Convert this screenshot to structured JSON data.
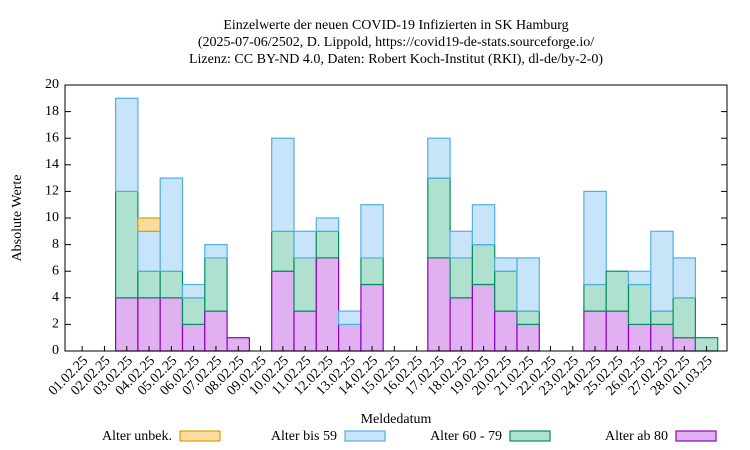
{
  "chart_data": {
    "type": "bar",
    "stacked": true,
    "title": [
      "Einzelwerte der neuen COVID-19 Infizierten in SK Hamburg",
      "(2025-07-06/2502, D. Lippold, https://covid19-de-stats.sourceforge.io/",
      "Lizenz: CC BY-ND 4.0, Daten: Robert Koch-Institut (RKI), dl-de/by-2-0)"
    ],
    "x_label": "Meldedatum",
    "y_label": "Absolute Werte",
    "categories": [
      "01.02.25",
      "02.02.25",
      "03.02.25",
      "04.02.25",
      "05.02.25",
      "06.02.25",
      "07.02.25",
      "08.02.25",
      "09.02.25",
      "10.02.25",
      "11.02.25",
      "12.02.25",
      "13.02.25",
      "14.02.25",
      "15.02.25",
      "16.02.25",
      "17.02.25",
      "18.02.25",
      "19.02.25",
      "20.02.25",
      "21.02.25",
      "22.02.25",
      "23.02.25",
      "24.02.25",
      "25.02.25",
      "26.02.25",
      "27.02.25",
      "28.02.25",
      "01.03.25"
    ],
    "series": [
      {
        "name": "Alter unbek.",
        "color": "#f8dca0",
        "edge": "#e0a000",
        "values": [
          0,
          0,
          0,
          1,
          0,
          0,
          0,
          0,
          0,
          0,
          0,
          0,
          0,
          0,
          0,
          0,
          0,
          0,
          0,
          0,
          0,
          0,
          0,
          0,
          0,
          0,
          0,
          0,
          0
        ]
      },
      {
        "name": "Alter bis 59",
        "color": "#c8e4f8",
        "edge": "#50b0e0",
        "values": [
          0,
          0,
          7,
          3,
          7,
          1,
          1,
          0,
          0,
          7,
          2,
          1,
          1,
          4,
          0,
          0,
          3,
          2,
          3,
          1,
          4,
          0,
          0,
          7,
          0,
          1,
          6,
          3,
          0
        ]
      },
      {
        "name": "Alter 60 - 79",
        "color": "#b0e0d0",
        "edge": "#009060",
        "values": [
          0,
          0,
          8,
          2,
          2,
          2,
          4,
          0,
          0,
          3,
          4,
          2,
          0,
          2,
          0,
          0,
          6,
          3,
          3,
          3,
          1,
          0,
          0,
          2,
          3,
          3,
          1,
          3,
          1
        ]
      },
      {
        "name": "Alter ab 80",
        "color": "#e0b0f0",
        "edge": "#9000c0",
        "values": [
          0,
          0,
          4,
          4,
          4,
          2,
          3,
          1,
          0,
          6,
          3,
          7,
          2,
          5,
          0,
          0,
          7,
          4,
          5,
          3,
          2,
          0,
          0,
          3,
          3,
          2,
          2,
          1,
          0
        ]
      }
    ],
    "ylim": [
      0,
      20
    ],
    "yticks": [
      0,
      2,
      4,
      6,
      8,
      10,
      12,
      14,
      16,
      18,
      20
    ]
  }
}
